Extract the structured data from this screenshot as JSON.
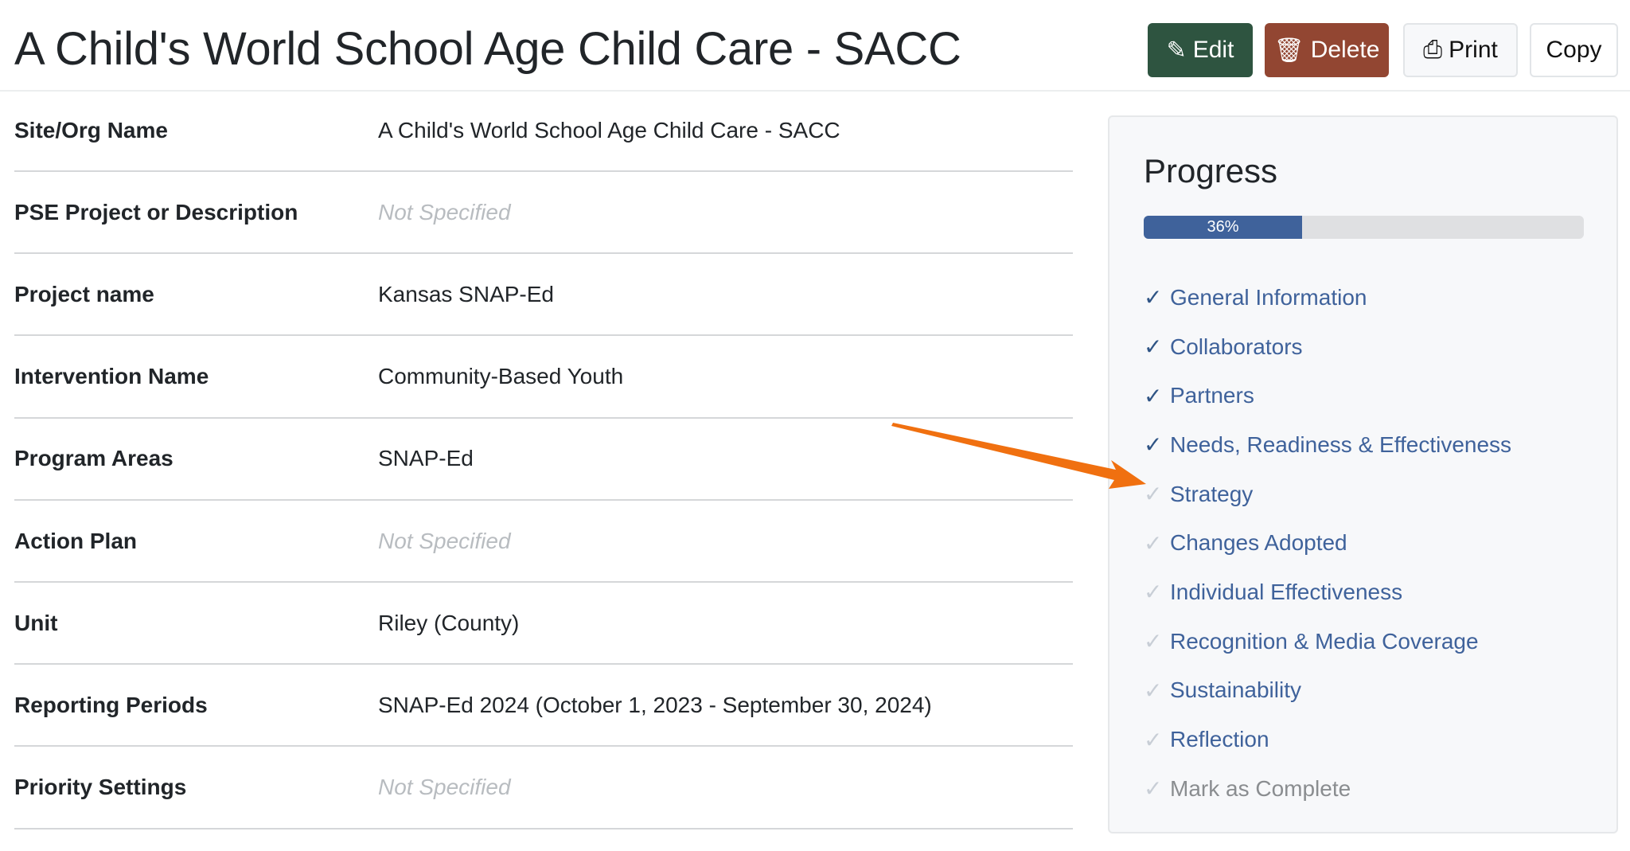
{
  "header": {
    "title": "A Child's World School Age Child Care - SACC",
    "buttons": {
      "edit": "Edit",
      "delete": "Delete",
      "print": "Print",
      "copy": "Copy"
    }
  },
  "details": [
    {
      "label": "Site/Org Name",
      "value": "A Child's World School Age Child Care - SACC",
      "specified": true
    },
    {
      "label": "PSE Project or Description",
      "value": "Not Specified",
      "specified": false
    },
    {
      "label": "Project name",
      "value": "Kansas SNAP-Ed",
      "specified": true
    },
    {
      "label": "Intervention Name",
      "value": "Community-Based Youth",
      "specified": true
    },
    {
      "label": "Program Areas",
      "value": "SNAP-Ed",
      "specified": true
    },
    {
      "label": "Action Plan",
      "value": "Not Specified",
      "specified": false
    },
    {
      "label": "Unit",
      "value": "Riley (County)",
      "specified": true
    },
    {
      "label": "Reporting Periods",
      "value": "SNAP-Ed 2024 (October 1, 2023 - September 30, 2024)",
      "specified": true
    },
    {
      "label": "Priority Settings",
      "value": "Not Specified",
      "specified": false
    }
  ],
  "progress": {
    "title": "Progress",
    "percent": 36,
    "percent_label": "36%",
    "steps": [
      {
        "label": "General Information",
        "complete": true
      },
      {
        "label": "Collaborators",
        "complete": true
      },
      {
        "label": "Partners",
        "complete": true
      },
      {
        "label": "Needs, Readiness & Effectiveness",
        "complete": true
      },
      {
        "label": "Strategy",
        "complete": false
      },
      {
        "label": "Changes Adopted",
        "complete": false
      },
      {
        "label": "Individual Effectiveness",
        "complete": false
      },
      {
        "label": "Recognition & Media Coverage",
        "complete": false
      },
      {
        "label": "Sustainability",
        "complete": false
      },
      {
        "label": "Reflection",
        "complete": false
      },
      {
        "label": "Mark as Complete",
        "complete": false
      }
    ]
  },
  "colors": {
    "edit": "#2e5440",
    "delete": "#924632",
    "progress": "#3f629b",
    "arrow": "#f07010"
  }
}
